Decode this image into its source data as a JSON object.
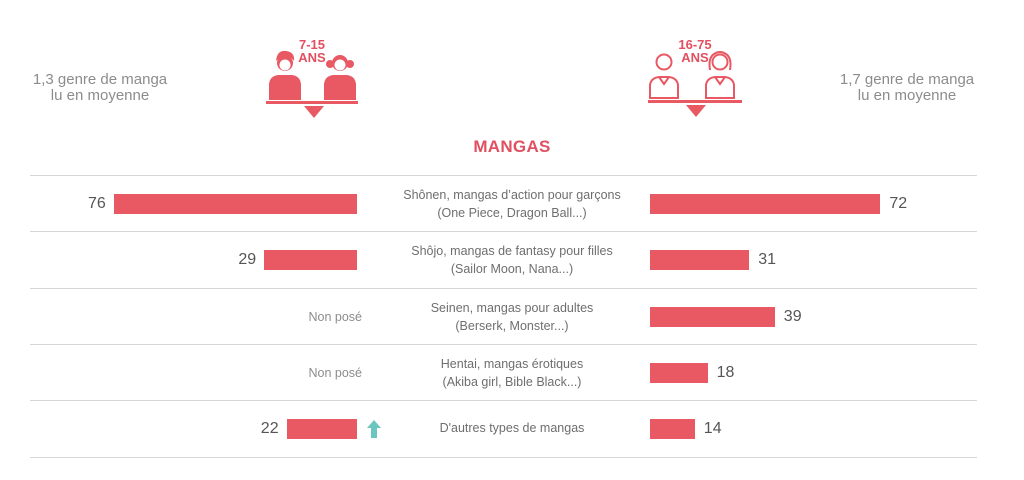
{
  "header": {
    "left_group": {
      "age_line1": "7-15",
      "age_line2": "ANS",
      "average_line1": "1,3 genre de manga",
      "average_line2": "lu en moyenne",
      "icon": "children-icon"
    },
    "right_group": {
      "age_line1": "16-75",
      "age_line2": "ANS",
      "average_line1": "1,7 genre de manga",
      "average_line2": "lu en moyenne",
      "icon": "adults-icon"
    }
  },
  "colors": {
    "bar": "#e85964",
    "accent": "#e15060",
    "trend_up": "#6cc6bf",
    "rule": "#d6d6d6"
  },
  "chart_data": {
    "type": "bar",
    "orientation": "horizontal-butterfly",
    "title": "MANGAS",
    "unit": "%",
    "categories": [
      {
        "line1": "Shônen, mangas d’action pour garçons",
        "line2": "(One Piece, Dragon Ball...)"
      },
      {
        "line1": "Shôjo, mangas de fantasy pour filles",
        "line2": "(Sailor Moon, Nana...)"
      },
      {
        "line1": "Seinen, mangas pour adultes",
        "line2": "(Berserk, Monster...)"
      },
      {
        "line1": "Hentai, mangas érotiques",
        "line2": "(Akiba girl, Bible Black...)"
      },
      {
        "line1": "D'autres types de mangas",
        "line2": ""
      }
    ],
    "series": [
      {
        "name": "7-15 ANS",
        "side": "left",
        "values": [
          76,
          29,
          null,
          null,
          22
        ],
        "labels": [
          "76",
          "29",
          "Non posé",
          "Non posé",
          "22"
        ],
        "trend": [
          null,
          null,
          null,
          null,
          "up"
        ]
      },
      {
        "name": "16-75 ANS",
        "side": "right",
        "values": [
          72,
          31,
          39,
          18,
          14
        ],
        "labels": [
          "72",
          "31",
          "39",
          "18",
          "14"
        ]
      }
    ],
    "xlim": [
      0,
      80
    ],
    "grid": false
  }
}
